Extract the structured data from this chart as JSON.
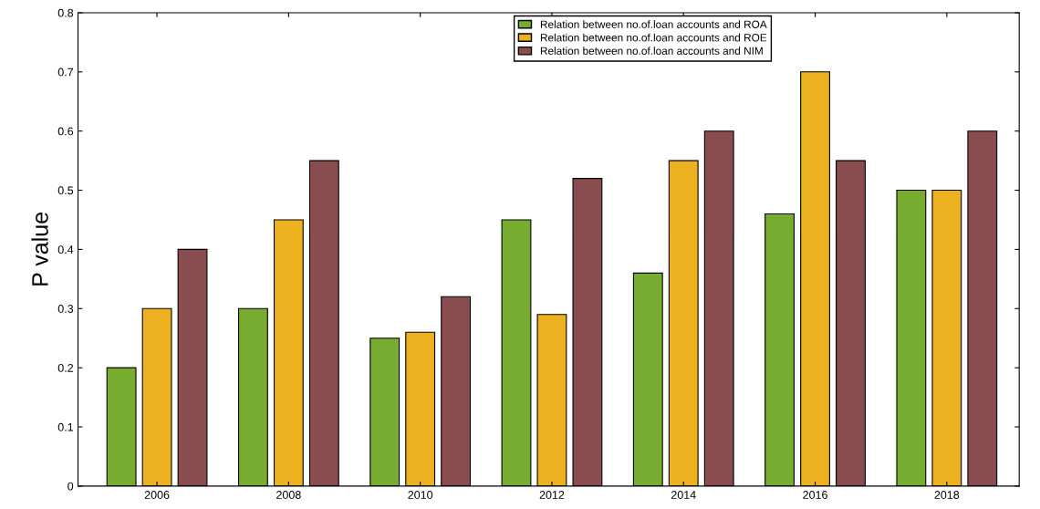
{
  "chart_data": {
    "type": "bar",
    "ylabel": "P value",
    "categories": [
      "2006",
      "2008",
      "2010",
      "2012",
      "2014",
      "2016",
      "2018"
    ],
    "series": [
      {
        "name": "Relation between no.of.loan accounts and ROA",
        "color": "#77ac30",
        "values": [
          0.2,
          0.3,
          0.25,
          0.45,
          0.36,
          0.46,
          0.5
        ]
      },
      {
        "name": "Relation between no.of.loan accounts and ROE",
        "color": "#edb120",
        "values": [
          0.3,
          0.45,
          0.26,
          0.29,
          0.55,
          0.7,
          0.5
        ]
      },
      {
        "name": "Relation between no.of.loan accounts and NIM",
        "color": "#8a4d4f",
        "values": [
          0.4,
          0.55,
          0.32,
          0.52,
          0.6,
          0.55,
          0.6
        ]
      }
    ],
    "ylim": [
      0,
      0.8
    ],
    "yticks": [
      0,
      0.1,
      0.2,
      0.3,
      0.4,
      0.5,
      0.6,
      0.7,
      0.8
    ],
    "grid": false,
    "legend": "top"
  }
}
